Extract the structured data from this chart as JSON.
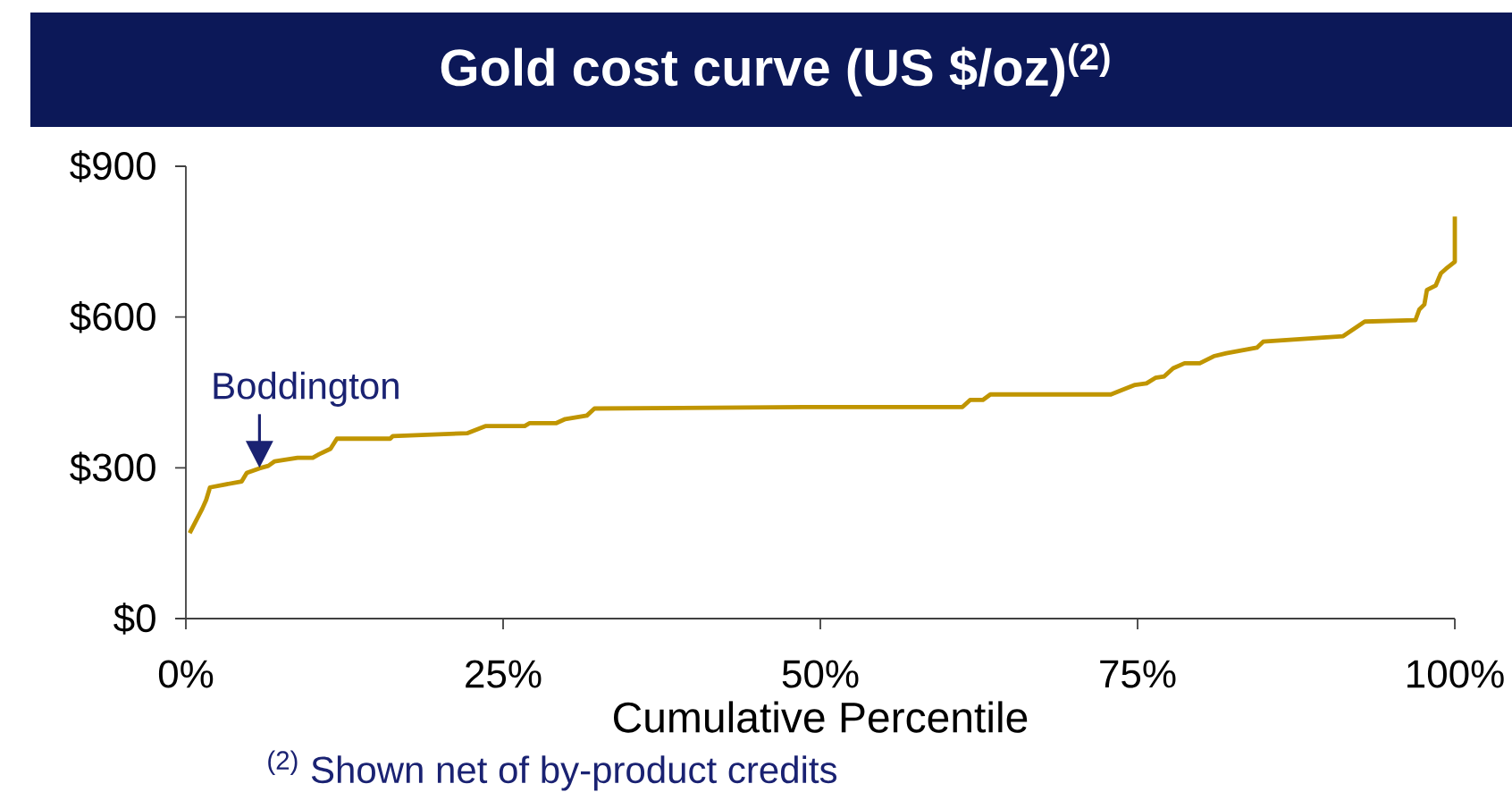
{
  "chart_data": {
    "type": "line",
    "title": "Gold cost curve (US $/oz)$^{(2)}$",
    "xlabel": "Cumulative Percentile",
    "x": [
      0.3,
      1.3,
      1.6,
      1.9,
      4.4,
      4.8,
      5.8,
      6.5,
      7.0,
      8.8,
      10.0,
      10.5,
      11.4,
      11.9,
      16.1,
      16.3,
      22.2,
      23.6,
      26.7,
      27.1,
      29.2,
      29.9,
      31.6,
      32.2,
      48.7,
      61.2,
      61.8,
      62.8,
      63.4,
      72.9,
      73.6,
      74.8,
      75.7,
      76.4,
      77.1,
      77.8,
      78.7,
      79.9,
      81.0,
      82.0,
      84.4,
      84.9,
      91.2,
      92.9,
      96.9,
      97.2,
      97.6,
      97.8,
      98.5,
      98.9,
      99.3,
      100,
      100
    ],
    "values": [
      170,
      219,
      236,
      261,
      273,
      290,
      299,
      304,
      313,
      320,
      320,
      327,
      338,
      358,
      358,
      363,
      369,
      383,
      383,
      389,
      389,
      397,
      404,
      418,
      421,
      421,
      435,
      435,
      446,
      446,
      453,
      465,
      468,
      479,
      482,
      498,
      508,
      508,
      522,
      528,
      539,
      551,
      562,
      591,
      594,
      615,
      625,
      654,
      663,
      687,
      696,
      710,
      800
    ],
    "color": "#c09500",
    "xlim": [
      0,
      100
    ],
    "xticks": [
      {
        "value": 0,
        "label": "0%"
      },
      {
        "value": 25,
        "label": "25%"
      },
      {
        "value": 50,
        "label": "50%"
      },
      {
        "value": 75,
        "label": "75%"
      },
      {
        "value": 100,
        "label": "100%"
      }
    ],
    "ylim": [
      0,
      900
    ],
    "yticks": [
      {
        "value": 0,
        "label": "$0"
      },
      {
        "value": 300,
        "label": "$300"
      },
      {
        "value": 600,
        "label": "$600"
      },
      {
        "value": 900,
        "label": "$900"
      }
    ],
    "annotations": [
      {
        "text": "Boddington",
        "x": 5.8,
        "y": 300
      },
      "$^{(2)}$ Shown net of by-product credits"
    ]
  }
}
